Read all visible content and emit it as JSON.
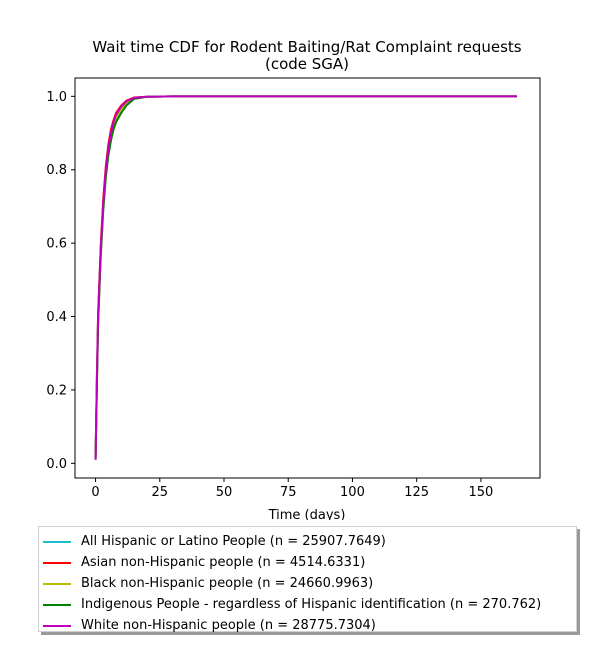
{
  "chart_data": {
    "type": "line",
    "title_line1": "Wait time CDF for Rodent Baiting/Rat Complaint  requests",
    "title_line2": "(code SGA)",
    "xlabel": "Time (days)",
    "ylabel": "",
    "xlim": [
      -8,
      173
    ],
    "ylim": [
      -0.04,
      1.05
    ],
    "xticks": [
      0,
      25,
      50,
      75,
      100,
      125,
      150
    ],
    "yticks": [
      0.0,
      0.2,
      0.4,
      0.6,
      0.8,
      1.0
    ],
    "ytick_labels": [
      "0.0",
      "0.2",
      "0.4",
      "0.6",
      "0.8",
      "1.0"
    ],
    "grid": false,
    "legend_placement": "below",
    "series": [
      {
        "name": "All Hispanic or Latino People (n = 25907.7649)",
        "color": "#17becf",
        "x": [
          0,
          0.5,
          1,
          2,
          3,
          4,
          5,
          6,
          7,
          8,
          10,
          12,
          15,
          20,
          30,
          60,
          100,
          164
        ],
        "y": [
          0.01,
          0.22,
          0.4,
          0.58,
          0.71,
          0.8,
          0.86,
          0.9,
          0.93,
          0.95,
          0.97,
          0.985,
          0.996,
          0.999,
          1.0,
          1.0,
          1.0,
          1.0
        ]
      },
      {
        "name": "Asian non-Hispanic people (n = 4514.6331)",
        "color": "#ff0000",
        "x": [
          0,
          0.5,
          1,
          2,
          3,
          4,
          5,
          6,
          7,
          8,
          10,
          12,
          15,
          20,
          30,
          60,
          100,
          164
        ],
        "y": [
          0.01,
          0.23,
          0.41,
          0.59,
          0.72,
          0.81,
          0.87,
          0.91,
          0.935,
          0.955,
          0.975,
          0.988,
          0.997,
          0.999,
          1.0,
          1.0,
          1.0,
          1.0
        ]
      },
      {
        "name": "Black non-Hispanic people (n = 24660.9963)",
        "color": "#bcbd00",
        "x": [
          0,
          0.5,
          1,
          2,
          3,
          4,
          5,
          6,
          7,
          8,
          10,
          12,
          15,
          20,
          30,
          60,
          100,
          164
        ],
        "y": [
          0.01,
          0.21,
          0.39,
          0.57,
          0.7,
          0.79,
          0.85,
          0.89,
          0.92,
          0.94,
          0.965,
          0.982,
          0.995,
          0.999,
          1.0,
          1.0,
          1.0,
          1.0
        ]
      },
      {
        "name": "Indigenous People - regardless of Hispanic identification (n = 270.762)",
        "color": "#008000",
        "x": [
          0,
          0.5,
          1,
          2,
          3,
          4,
          5,
          6,
          7,
          8,
          10,
          12,
          15,
          20,
          30,
          60,
          100,
          164
        ],
        "y": [
          0.01,
          0.2,
          0.38,
          0.56,
          0.69,
          0.78,
          0.84,
          0.88,
          0.91,
          0.93,
          0.955,
          0.975,
          0.993,
          0.999,
          1.0,
          1.0,
          1.0,
          1.0
        ]
      },
      {
        "name": "White non-Hispanic people (n = 28775.7304)",
        "color": "#bf00bf",
        "x": [
          0,
          0.5,
          1,
          2,
          3,
          4,
          5,
          6,
          7,
          8,
          10,
          12,
          15,
          20,
          30,
          60,
          100,
          164
        ],
        "y": [
          0.01,
          0.22,
          0.4,
          0.58,
          0.71,
          0.8,
          0.86,
          0.9,
          0.93,
          0.95,
          0.972,
          0.986,
          0.996,
          0.999,
          1.0,
          1.0,
          1.0,
          1.0
        ]
      }
    ]
  }
}
